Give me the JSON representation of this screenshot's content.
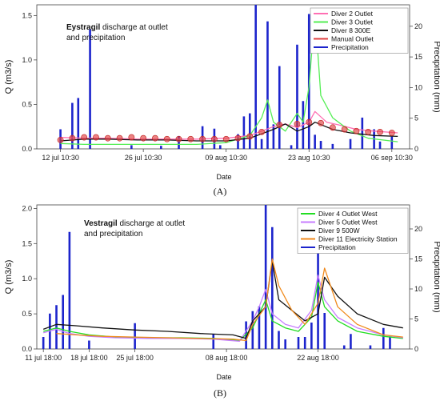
{
  "figure": {
    "panel_labels": [
      "(A)",
      "(B)"
    ]
  },
  "chart_data": [
    {
      "type": "line",
      "title_bold": "Eystragil",
      "title_rest": " discharge at outlet",
      "title_line2": "and precipitation",
      "xlabel": "Date",
      "ylabel": "Q (m3/s)",
      "ylabel_right": "Precipitation (mm)",
      "x_domain": [
        "2024-07-08",
        "2024-09-09"
      ],
      "x_ticks": [
        {
          "date": "2024-07-12",
          "label": "12 jul 10:30"
        },
        {
          "date": "2024-07-26",
          "label": "26 jul 10:30"
        },
        {
          "date": "2024-08-09",
          "label": "09 aug 10:30"
        },
        {
          "date": "2024-08-23",
          "label": "23 aug 10:30"
        },
        {
          "date": "2024-09-06",
          "label": "06 sep 10:30"
        }
      ],
      "ylim": [
        0,
        1.62
      ],
      "y_ticks": [
        "0.0",
        "0.5",
        "1.0",
        "1.5"
      ],
      "y2lim": [
        0,
        23.5
      ],
      "y2_ticks": [
        "0",
        "5",
        "10",
        "15",
        "20"
      ],
      "legend": {
        "placement": "top-right"
      },
      "series": [
        {
          "name": "Diver 2 Outlet",
          "color": "#ff6fb3",
          "kind": "line",
          "x": [
            "2024-07-12",
            "2024-07-16",
            "2024-07-20",
            "2024-07-25",
            "2024-07-30",
            "2024-08-04",
            "2024-08-09",
            "2024-08-13",
            "2024-08-15",
            "2024-08-17",
            "2024-08-19",
            "2024-08-21",
            "2024-08-23",
            "2024-08-24",
            "2024-08-26",
            "2024-08-28",
            "2024-08-31",
            "2024-09-03",
            "2024-09-07"
          ],
          "y": [
            0.13,
            0.12,
            0.12,
            0.11,
            0.11,
            0.11,
            0.12,
            0.15,
            0.2,
            0.25,
            0.28,
            0.24,
            0.3,
            0.42,
            0.3,
            0.27,
            0.22,
            0.2,
            0.18
          ]
        },
        {
          "name": "Diver 3 Outlet",
          "color": "#55ee55",
          "kind": "line",
          "x": [
            "2024-07-12",
            "2024-07-16",
            "2024-07-20",
            "2024-07-25",
            "2024-07-30",
            "2024-08-04",
            "2024-08-09",
            "2024-08-13",
            "2024-08-15",
            "2024-08-16",
            "2024-08-17",
            "2024-08-19",
            "2024-08-21",
            "2024-08-22",
            "2024-08-23",
            "2024-08-24",
            "2024-08-25",
            "2024-08-27",
            "2024-08-30",
            "2024-09-02",
            "2024-09-07"
          ],
          "y": [
            0.06,
            0.05,
            0.05,
            0.05,
            0.05,
            0.05,
            0.07,
            0.15,
            0.35,
            0.55,
            0.3,
            0.2,
            0.4,
            0.3,
            0.7,
            1.55,
            0.6,
            0.35,
            0.2,
            0.12,
            0.08
          ]
        },
        {
          "name": "Diver 8 300E",
          "color": "#111111",
          "kind": "line",
          "x": [
            "2024-07-12",
            "2024-07-16",
            "2024-07-20",
            "2024-07-25",
            "2024-07-30",
            "2024-08-04",
            "2024-08-09",
            "2024-08-13",
            "2024-08-15",
            "2024-08-17",
            "2024-08-19",
            "2024-08-21",
            "2024-08-23",
            "2024-08-24",
            "2024-08-27",
            "2024-08-30",
            "2024-09-03",
            "2024-09-07"
          ],
          "y": [
            0.09,
            0.11,
            0.11,
            0.1,
            0.1,
            0.09,
            0.09,
            0.12,
            0.17,
            0.22,
            0.28,
            0.2,
            0.25,
            0.3,
            0.22,
            0.18,
            0.15,
            0.14
          ]
        },
        {
          "name": "Manual Outlet",
          "color": "#e04040",
          "kind": "points",
          "x": [
            "2024-07-12",
            "2024-07-14",
            "2024-07-16",
            "2024-07-18",
            "2024-07-20",
            "2024-07-22",
            "2024-07-24",
            "2024-07-26",
            "2024-07-28",
            "2024-07-30",
            "2024-08-01",
            "2024-08-03",
            "2024-08-05",
            "2024-08-07",
            "2024-08-09",
            "2024-08-11",
            "2024-08-13",
            "2024-08-15",
            "2024-08-18",
            "2024-08-21",
            "2024-08-23",
            "2024-08-25",
            "2024-08-27",
            "2024-08-29",
            "2024-08-31",
            "2024-09-02",
            "2024-09-04",
            "2024-09-06"
          ],
          "y": [
            0.1,
            0.12,
            0.13,
            0.13,
            0.12,
            0.12,
            0.13,
            0.12,
            0.12,
            0.11,
            0.11,
            0.11,
            0.11,
            0.11,
            0.11,
            0.12,
            0.14,
            0.19,
            0.27,
            0.28,
            0.3,
            0.29,
            0.24,
            0.22,
            0.2,
            0.19,
            0.19,
            0.18
          ]
        },
        {
          "name": "Precipitation",
          "color": "#1c24cc",
          "kind": "bars",
          "axis": "right",
          "x": [
            "2024-07-12",
            "2024-07-14",
            "2024-07-15",
            "2024-07-17",
            "2024-07-24",
            "2024-07-29",
            "2024-08-01",
            "2024-08-05",
            "2024-08-07",
            "2024-08-08",
            "2024-08-11",
            "2024-08-12",
            "2024-08-13",
            "2024-08-14",
            "2024-08-15",
            "2024-08-16",
            "2024-08-17",
            "2024-08-18",
            "2024-08-20",
            "2024-08-21",
            "2024-08-22",
            "2024-08-23",
            "2024-08-24",
            "2024-08-25",
            "2024-08-27",
            "2024-08-30",
            "2024-09-01",
            "2024-09-03",
            "2024-09-04",
            "2024-09-06"
          ],
          "values": [
            3.2,
            7.5,
            8.3,
            19.5,
            0.6,
            0.5,
            2.1,
            3.7,
            3.3,
            0.6,
            2.4,
            5.3,
            5.8,
            23.5,
            1.6,
            20.8,
            4.0,
            13.5,
            0.6,
            17.0,
            7.8,
            22.0,
            2.3,
            1.3,
            0.8,
            1.6,
            5.1,
            3.2,
            1.2,
            2.0
          ]
        }
      ]
    },
    {
      "type": "line",
      "title_bold": "Vestragil",
      "title_rest": " discharge at outlet",
      "title_line2": "and precipitation",
      "xlabel": "Date",
      "ylabel": "Q (m3/s)",
      "ylabel_right": "Precipitation (mm)",
      "x_domain": [
        "2024-07-10",
        "2024-09-05"
      ],
      "x_ticks": [
        {
          "date": "2024-07-11",
          "label": "11 jul 18:00"
        },
        {
          "date": "2024-07-18",
          "label": "18 jul 18:00"
        },
        {
          "date": "2024-07-25",
          "label": "25 jul 18:00"
        },
        {
          "date": "2024-08-08",
          "label": "08 aug 18:00"
        },
        {
          "date": "2024-08-22",
          "label": "22 aug 18:00"
        }
      ],
      "ylim": [
        0,
        2.05
      ],
      "y_ticks": [
        "0.0",
        "0.5",
        "1.0",
        "1.5",
        "2.0"
      ],
      "y2lim": [
        0,
        24
      ],
      "y2_ticks": [
        "0",
        "5",
        "10",
        "15",
        "20"
      ],
      "legend": {
        "placement": "top-right"
      },
      "series": [
        {
          "name": "Diver 4 Outlet West",
          "color": "#22dd22",
          "kind": "line",
          "x": [
            "2024-07-11",
            "2024-07-13",
            "2024-07-15",
            "2024-07-18",
            "2024-07-22",
            "2024-07-27",
            "2024-08-01",
            "2024-08-06",
            "2024-08-10",
            "2024-08-12",
            "2024-08-13",
            "2024-08-14",
            "2024-08-15",
            "2024-08-17",
            "2024-08-19",
            "2024-08-21",
            "2024-08-22",
            "2024-08-23",
            "2024-08-25",
            "2024-08-28",
            "2024-09-01",
            "2024-09-04"
          ],
          "y": [
            0.25,
            0.3,
            0.25,
            0.2,
            0.17,
            0.16,
            0.16,
            0.15,
            0.12,
            0.3,
            0.5,
            0.7,
            0.4,
            0.3,
            0.25,
            0.45,
            0.95,
            0.6,
            0.4,
            0.25,
            0.18,
            0.15
          ]
        },
        {
          "name": "Diver 5 Outlet West",
          "color": "#c77dff",
          "kind": "line",
          "x": [
            "2024-07-11",
            "2024-07-13",
            "2024-07-15",
            "2024-07-18",
            "2024-07-22",
            "2024-07-27",
            "2024-08-01",
            "2024-08-06",
            "2024-08-10",
            "2024-08-12",
            "2024-08-13",
            "2024-08-14",
            "2024-08-15",
            "2024-08-17",
            "2024-08-19",
            "2024-08-21",
            "2024-08-22",
            "2024-08-23",
            "2024-08-25",
            "2024-08-28",
            "2024-09-01",
            "2024-09-04"
          ],
          "y": [
            0.23,
            0.28,
            0.22,
            0.18,
            0.16,
            0.15,
            0.15,
            0.14,
            0.11,
            0.4,
            0.6,
            0.85,
            0.5,
            0.35,
            0.3,
            0.55,
            1.05,
            0.7,
            0.45,
            0.3,
            0.2,
            0.16
          ]
        },
        {
          "name": "Diver 9 500W",
          "color": "#111111",
          "kind": "line",
          "x": [
            "2024-07-11",
            "2024-07-13",
            "2024-07-16",
            "2024-07-20",
            "2024-07-25",
            "2024-07-30",
            "2024-08-04",
            "2024-08-09",
            "2024-08-11",
            "2024-08-12",
            "2024-08-14",
            "2024-08-15",
            "2024-08-16",
            "2024-08-18",
            "2024-08-20",
            "2024-08-22",
            "2024-08-23",
            "2024-08-25",
            "2024-08-28",
            "2024-09-01",
            "2024-09-04"
          ],
          "y": [
            0.28,
            0.35,
            0.33,
            0.3,
            0.27,
            0.25,
            0.22,
            0.2,
            0.15,
            0.4,
            0.6,
            1.25,
            0.7,
            0.55,
            0.4,
            0.5,
            1.02,
            0.75,
            0.5,
            0.35,
            0.3
          ]
        },
        {
          "name": "Diver 11 Electricity Station",
          "color": "#f08a1c",
          "kind": "line",
          "x": [
            "2024-07-13",
            "2024-07-16",
            "2024-07-20",
            "2024-07-25",
            "2024-07-30",
            "2024-08-04",
            "2024-08-09",
            "2024-08-11",
            "2024-08-12",
            "2024-08-14",
            "2024-08-15",
            "2024-08-16",
            "2024-08-18",
            "2024-08-20",
            "2024-08-22",
            "2024-08-23",
            "2024-08-25",
            "2024-08-28",
            "2024-09-01",
            "2024-09-04"
          ],
          "y": [
            0.22,
            0.2,
            0.18,
            0.17,
            0.16,
            0.15,
            0.14,
            0.12,
            0.35,
            0.6,
            1.28,
            0.9,
            0.55,
            0.35,
            0.65,
            1.15,
            0.6,
            0.35,
            0.2,
            0.17
          ]
        },
        {
          "name": "Precipitation",
          "color": "#1c24cc",
          "kind": "bars",
          "axis": "right",
          "x": [
            "2024-07-11",
            "2024-07-12",
            "2024-07-13",
            "2024-07-14",
            "2024-07-15",
            "2024-07-18",
            "2024-07-25",
            "2024-08-06",
            "2024-08-11",
            "2024-08-12",
            "2024-08-13",
            "2024-08-14",
            "2024-08-15",
            "2024-08-16",
            "2024-08-17",
            "2024-08-19",
            "2024-08-20",
            "2024-08-21",
            "2024-08-22",
            "2024-08-23",
            "2024-08-26",
            "2024-08-27",
            "2024-08-30",
            "2024-09-01",
            "2024-09-02"
          ],
          "values": [
            2.0,
            5.9,
            7.3,
            9.0,
            19.5,
            1.4,
            4.3,
            2.4,
            4.6,
            6.3,
            7.1,
            24.0,
            20.3,
            3.0,
            1.6,
            2.0,
            2.0,
            4.4,
            16.5,
            6.0,
            0.6,
            2.5,
            0.6,
            3.5,
            2.1
          ]
        }
      ]
    }
  ]
}
